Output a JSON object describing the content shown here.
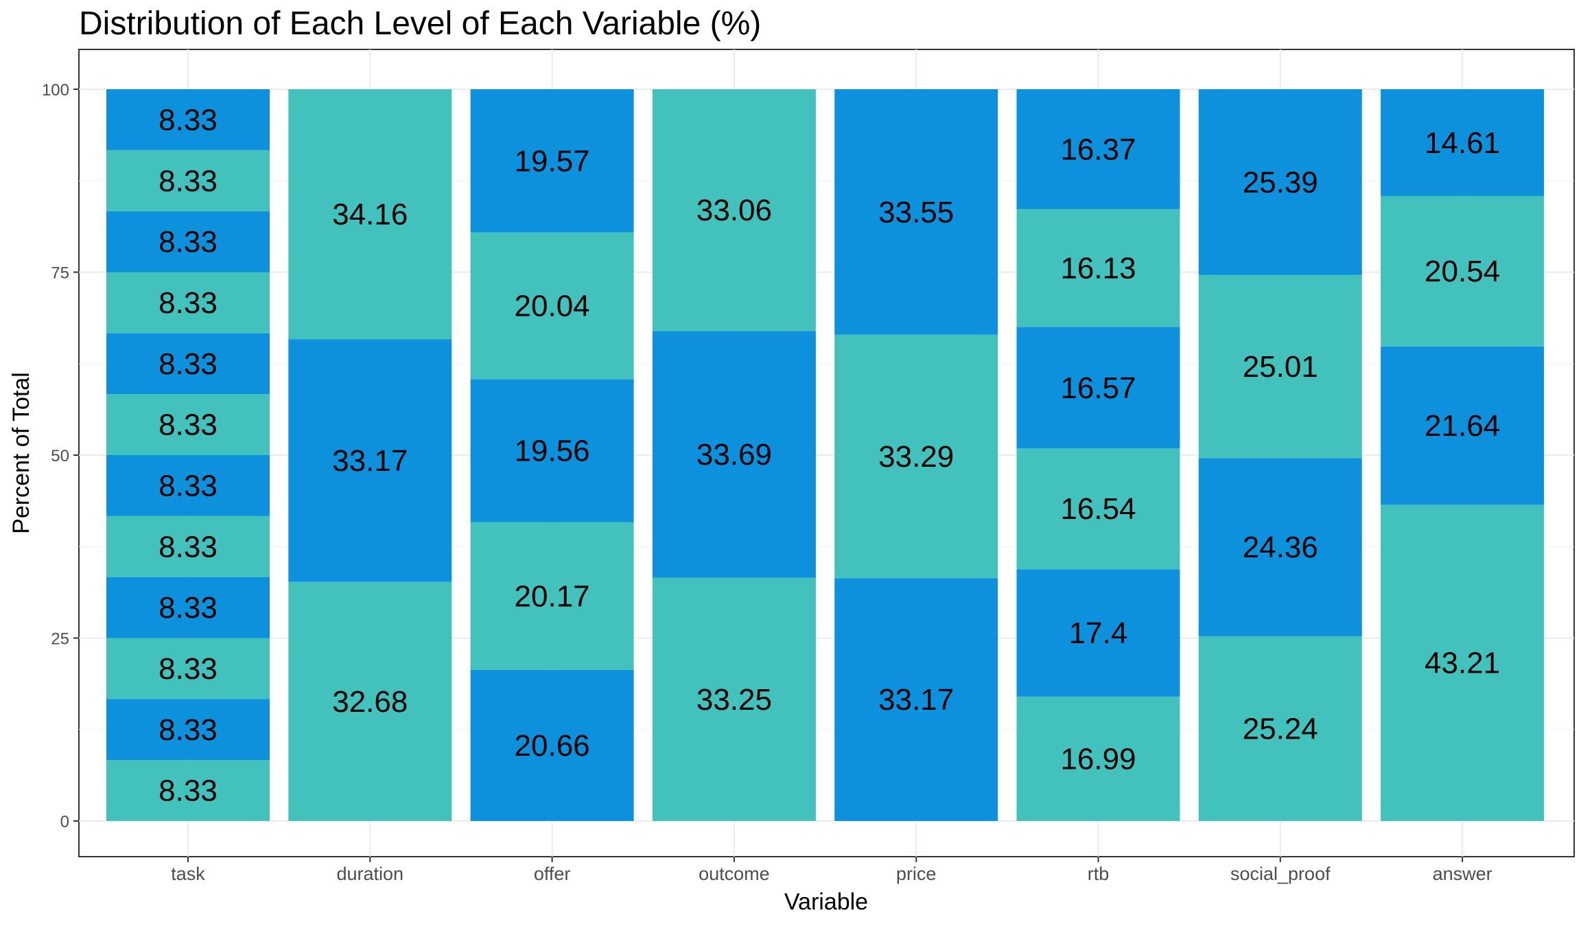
{
  "chart_data": {
    "type": "bar",
    "stacked": true,
    "title": "Distribution of Each Level of Each Variable (%)",
    "xlabel": "Variable",
    "ylabel": "Percent of Total",
    "ylim": [
      -5,
      105
    ],
    "yticks": [
      0,
      25,
      50,
      75,
      100
    ],
    "grid": true,
    "legend": "none",
    "colors": [
      "#43c1bd",
      "#0e91dc"
    ],
    "categories": [
      "task",
      "duration",
      "offer",
      "outcome",
      "price",
      "rtb",
      "social_proof",
      "answer"
    ],
    "stacks": [
      {
        "category": "task",
        "values": [
          8.33,
          8.33,
          8.33,
          8.33,
          8.33,
          8.33,
          8.33,
          8.33,
          8.33,
          8.33,
          8.33,
          8.33
        ],
        "labels": [
          "8.33",
          "8.33",
          "8.33",
          "8.33",
          "8.33",
          "8.33",
          "8.33",
          "8.33",
          "8.33",
          "8.33",
          "8.33",
          "8.33"
        ]
      },
      {
        "category": "duration",
        "values": [
          32.68,
          33.17,
          34.16
        ],
        "labels": [
          "32.68",
          "33.17",
          "34.16"
        ]
      },
      {
        "category": "offer",
        "values": [
          20.66,
          20.17,
          19.56,
          20.04,
          19.57
        ],
        "labels": [
          "20.66",
          "20.17",
          "19.56",
          "20.04",
          "19.57"
        ]
      },
      {
        "category": "outcome",
        "values": [
          33.25,
          33.69,
          33.06
        ],
        "labels": [
          "33.25",
          "33.69",
          "33.06"
        ]
      },
      {
        "category": "price",
        "values": [
          33.17,
          33.29,
          33.55
        ],
        "labels": [
          "33.17",
          "33.29",
          "33.55"
        ]
      },
      {
        "category": "rtb",
        "values": [
          16.99,
          17.4,
          16.54,
          16.57,
          16.13,
          16.37
        ],
        "labels": [
          "16.99",
          "17.4",
          "16.54",
          "16.57",
          "16.13",
          "16.37"
        ]
      },
      {
        "category": "social_proof",
        "values": [
          25.24,
          24.36,
          25.01,
          25.39
        ],
        "labels": [
          "25.24",
          "24.36",
          "25.01",
          "25.39"
        ]
      },
      {
        "category": "answer",
        "values": [
          43.21,
          21.64,
          20.54,
          14.61
        ],
        "labels": [
          "43.21",
          "21.64",
          "20.54",
          "14.61"
        ]
      }
    ],
    "color_order": {
      "task": [
        "#43c1bd",
        "#0e91dc",
        "#43c1bd",
        "#0e91dc",
        "#43c1bd",
        "#0e91dc",
        "#43c1bd",
        "#0e91dc",
        "#43c1bd",
        "#0e91dc",
        "#43c1bd",
        "#0e91dc"
      ],
      "duration": [
        "#43c1bd",
        "#0e91dc",
        "#43c1bd"
      ],
      "offer": [
        "#0e91dc",
        "#43c1bd",
        "#0e91dc",
        "#43c1bd",
        "#0e91dc"
      ],
      "outcome": [
        "#43c1bd",
        "#0e91dc",
        "#43c1bd"
      ],
      "price": [
        "#0e91dc",
        "#43c1bd",
        "#0e91dc"
      ],
      "rtb": [
        "#43c1bd",
        "#0e91dc",
        "#43c1bd",
        "#0e91dc",
        "#43c1bd",
        "#0e91dc"
      ],
      "social_proof": [
        "#43c1bd",
        "#0e91dc",
        "#43c1bd",
        "#0e91dc"
      ],
      "answer": [
        "#43c1bd",
        "#0e91dc",
        "#43c1bd",
        "#0e91dc"
      ]
    }
  }
}
